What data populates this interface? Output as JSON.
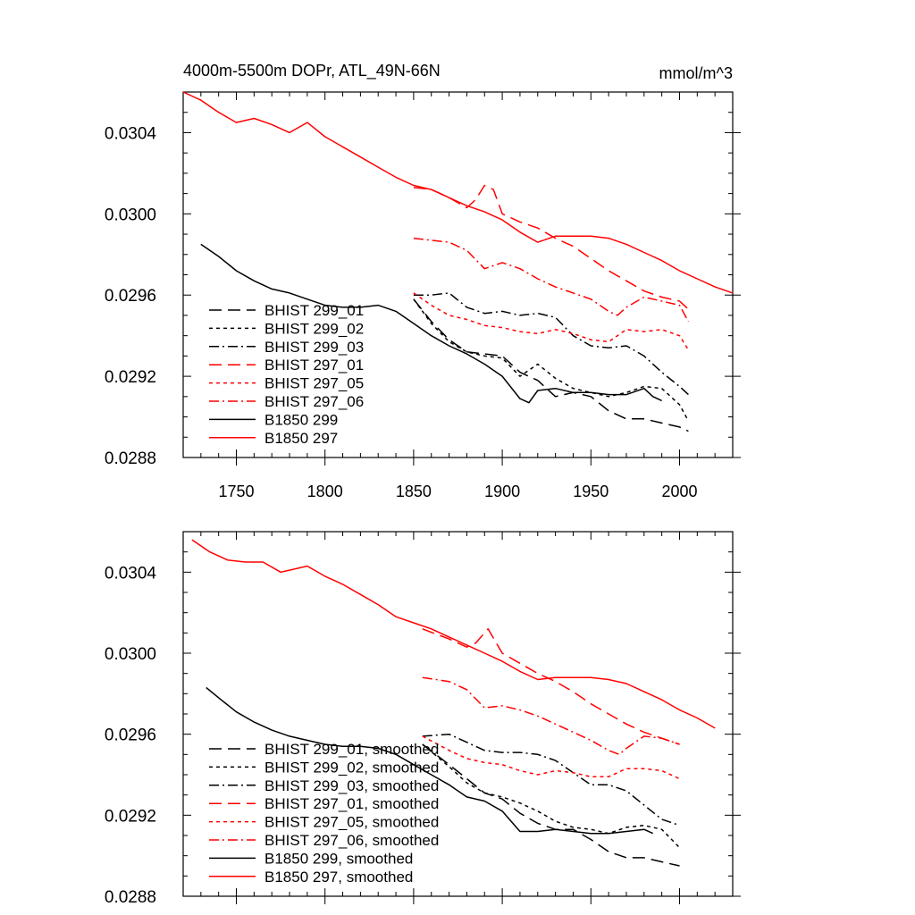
{
  "chart_data": [
    {
      "type": "line",
      "title": "4000m-5500m DOPr, ATL_49N-66N",
      "units": "mmol/m^3",
      "xlim": [
        1720,
        2030
      ],
      "ylim": [
        0.0288,
        0.0306
      ],
      "xticks": [
        1750,
        1800,
        1850,
        1900,
        1950,
        2000
      ],
      "xtick_labels": [
        "1750",
        "1800",
        "1850",
        "1900",
        "1950",
        "2000"
      ],
      "yticks": [
        0.0288,
        0.0292,
        0.0296,
        0.03,
        0.0304
      ],
      "ytick_labels": [
        "0.0288",
        "0.0292",
        "0.0296",
        "0.0300",
        "0.0304"
      ],
      "legend": "bottom-left",
      "series": [
        {
          "name": "BHIST 299_01",
          "color": "#000000",
          "dash": "dashed",
          "x": [
            1850,
            1860,
            1870,
            1880,
            1890,
            1900,
            1910,
            1920,
            1930,
            1940,
            1950,
            1960,
            1970,
            1980,
            1990,
            2000,
            2005
          ],
          "y": [
            0.02958,
            0.02947,
            0.02938,
            0.02932,
            0.02931,
            0.0293,
            0.02922,
            0.02918,
            0.0291,
            0.02912,
            0.0291,
            0.02903,
            0.02899,
            0.02899,
            0.02897,
            0.02895,
            0.02893
          ]
        },
        {
          "name": "BHIST 299_02",
          "color": "#000000",
          "dash": "dotted",
          "x": [
            1850,
            1860,
            1870,
            1880,
            1890,
            1900,
            1910,
            1920,
            1930,
            1940,
            1950,
            1960,
            1970,
            1980,
            1990,
            2000,
            2005
          ],
          "y": [
            0.02958,
            0.02946,
            0.02937,
            0.02932,
            0.0293,
            0.02929,
            0.0292,
            0.02926,
            0.02919,
            0.02914,
            0.02912,
            0.0291,
            0.02912,
            0.02915,
            0.02914,
            0.02906,
            0.02898
          ]
        },
        {
          "name": "BHIST 299_03",
          "color": "#000000",
          "dash": "dashdot",
          "x": [
            1850,
            1860,
            1870,
            1880,
            1890,
            1900,
            1910,
            1920,
            1930,
            1940,
            1950,
            1960,
            1970,
            1980,
            1990,
            2000,
            2005
          ],
          "y": [
            0.0296,
            0.0296,
            0.02961,
            0.02954,
            0.02951,
            0.02952,
            0.0295,
            0.02951,
            0.02949,
            0.0294,
            0.02935,
            0.02934,
            0.02935,
            0.0293,
            0.02922,
            0.02915,
            0.02911
          ]
        },
        {
          "name": "BHIST 297_01",
          "color": "#ff0000",
          "dash": "dashed",
          "x": [
            1850,
            1860,
            1870,
            1880,
            1885,
            1890,
            1895,
            1900,
            1910,
            1920,
            1930,
            1940,
            1950,
            1960,
            1970,
            1980,
            1990,
            2000,
            2005
          ],
          "y": [
            0.03013,
            0.03012,
            0.03008,
            0.03003,
            0.03007,
            0.03014,
            0.03012,
            0.03,
            0.02996,
            0.02993,
            0.02988,
            0.02984,
            0.02978,
            0.02972,
            0.02967,
            0.02962,
            0.02959,
            0.02957,
            0.02953
          ]
        },
        {
          "name": "BHIST 297_05",
          "color": "#ff0000",
          "dash": "dotted",
          "x": [
            1850,
            1860,
            1870,
            1880,
            1890,
            1900,
            1910,
            1920,
            1930,
            1940,
            1950,
            1960,
            1970,
            1980,
            1990,
            2000,
            2005
          ],
          "y": [
            0.02961,
            0.02955,
            0.0295,
            0.02948,
            0.02945,
            0.02944,
            0.02942,
            0.02941,
            0.02943,
            0.02941,
            0.02938,
            0.02937,
            0.02943,
            0.02942,
            0.02943,
            0.0294,
            0.02933
          ]
        },
        {
          "name": "BHIST 297_06",
          "color": "#ff0000",
          "dash": "dashdot",
          "x": [
            1850,
            1860,
            1870,
            1880,
            1890,
            1900,
            1910,
            1920,
            1930,
            1940,
            1950,
            1960,
            1965,
            1970,
            1980,
            1990,
            2000,
            2005
          ],
          "y": [
            0.02988,
            0.02987,
            0.02986,
            0.02982,
            0.02973,
            0.02976,
            0.02973,
            0.02968,
            0.02964,
            0.02961,
            0.02958,
            0.02952,
            0.0295,
            0.02954,
            0.02959,
            0.02957,
            0.02955,
            0.02947
          ]
        },
        {
          "name": "B1850 299",
          "color": "#000000",
          "dash": "solid",
          "x": [
            1730,
            1740,
            1750,
            1760,
            1770,
            1780,
            1790,
            1800,
            1810,
            1820,
            1830,
            1840,
            1850,
            1860,
            1870,
            1880,
            1890,
            1900,
            1910,
            1915,
            1920,
            1930,
            1940,
            1950,
            1960,
            1970,
            1980,
            1985,
            1990
          ],
          "y": [
            0.02985,
            0.02979,
            0.02972,
            0.02967,
            0.02963,
            0.02961,
            0.02958,
            0.02955,
            0.02954,
            0.02954,
            0.02955,
            0.02952,
            0.02946,
            0.0294,
            0.02935,
            0.02931,
            0.02926,
            0.0292,
            0.02909,
            0.02907,
            0.02913,
            0.02914,
            0.02912,
            0.02912,
            0.02911,
            0.02911,
            0.02914,
            0.0291,
            0.02908
          ]
        },
        {
          "name": "B1850 297",
          "color": "#ff0000",
          "dash": "solid",
          "x": [
            1720,
            1730,
            1740,
            1750,
            1760,
            1770,
            1780,
            1790,
            1800,
            1810,
            1820,
            1830,
            1840,
            1850,
            1860,
            1870,
            1880,
            1890,
            1900,
            1910,
            1920,
            1930,
            1940,
            1950,
            1960,
            1970,
            1980,
            1990,
            2000,
            2010,
            2020,
            2030
          ],
          "y": [
            0.0306,
            0.03056,
            0.0305,
            0.03045,
            0.03047,
            0.03044,
            0.0304,
            0.03045,
            0.03038,
            0.03033,
            0.03028,
            0.03023,
            0.03018,
            0.03014,
            0.03012,
            0.03008,
            0.03004,
            0.03001,
            0.02997,
            0.02991,
            0.02986,
            0.02989,
            0.02989,
            0.02989,
            0.02988,
            0.02985,
            0.02981,
            0.02977,
            0.02972,
            0.02968,
            0.02964,
            0.02961
          ]
        }
      ]
    },
    {
      "type": "line",
      "xlim": [
        1720,
        2030
      ],
      "ylim": [
        0.0288,
        0.0306
      ],
      "xticks": [
        1750,
        1800,
        1850,
        1900,
        1950,
        2000
      ],
      "yticks": [
        0.0288,
        0.0292,
        0.0296,
        0.03,
        0.0304
      ],
      "ytick_labels": [
        "0.0288",
        "0.0292",
        "0.0296",
        "0.0300",
        "0.0304"
      ],
      "legend": "bottom-left",
      "series": [
        {
          "name": "BHIST 299_01, smoothed",
          "color": "#000000",
          "dash": "dashed",
          "x": [
            1855,
            1870,
            1880,
            1890,
            1900,
            1910,
            1920,
            1930,
            1940,
            1950,
            1960,
            1970,
            1980,
            1990,
            2000
          ],
          "y": [
            0.02955,
            0.02945,
            0.02938,
            0.02931,
            0.02928,
            0.02921,
            0.02916,
            0.02913,
            0.02913,
            0.02908,
            0.02902,
            0.02899,
            0.02899,
            0.02897,
            0.02895
          ]
        },
        {
          "name": "BHIST 299_02, smoothed",
          "color": "#000000",
          "dash": "dotted",
          "x": [
            1855,
            1870,
            1880,
            1890,
            1900,
            1910,
            1920,
            1930,
            1940,
            1950,
            1960,
            1970,
            1980,
            1990,
            2000
          ],
          "y": [
            0.02955,
            0.02944,
            0.02936,
            0.02931,
            0.02929,
            0.02926,
            0.02922,
            0.02917,
            0.02914,
            0.02913,
            0.02911,
            0.02914,
            0.02915,
            0.02913,
            0.02904
          ]
        },
        {
          "name": "BHIST 299_03, smoothed",
          "color": "#000000",
          "dash": "dashdot",
          "x": [
            1855,
            1870,
            1880,
            1890,
            1900,
            1910,
            1920,
            1930,
            1940,
            1950,
            1960,
            1970,
            1980,
            1990,
            2000
          ],
          "y": [
            0.02959,
            0.0296,
            0.02956,
            0.02952,
            0.02951,
            0.02951,
            0.0295,
            0.02947,
            0.02941,
            0.02935,
            0.02935,
            0.02932,
            0.02925,
            0.02918,
            0.02915
          ]
        },
        {
          "name": "BHIST 297_01, smoothed",
          "color": "#ff0000",
          "dash": "dashed",
          "x": [
            1855,
            1870,
            1880,
            1885,
            1892,
            1900,
            1910,
            1920,
            1930,
            1940,
            1950,
            1960,
            1970,
            1980,
            1990,
            2000
          ],
          "y": [
            0.03012,
            0.03007,
            0.03003,
            0.03005,
            0.03012,
            0.03,
            0.02995,
            0.0299,
            0.02986,
            0.02981,
            0.02975,
            0.0297,
            0.02965,
            0.02961,
            0.02958,
            0.02955
          ]
        },
        {
          "name": "BHIST 297_05, smoothed",
          "color": "#ff0000",
          "dash": "dotted",
          "x": [
            1855,
            1870,
            1880,
            1890,
            1900,
            1910,
            1920,
            1930,
            1940,
            1950,
            1960,
            1970,
            1980,
            1990,
            2000
          ],
          "y": [
            0.02959,
            0.02952,
            0.02948,
            0.02946,
            0.02945,
            0.02942,
            0.0294,
            0.02942,
            0.02941,
            0.02939,
            0.02939,
            0.02943,
            0.02943,
            0.02942,
            0.02938
          ]
        },
        {
          "name": "BHIST 297_06, smoothed",
          "color": "#ff0000",
          "dash": "dashdot",
          "x": [
            1855,
            1870,
            1880,
            1890,
            1900,
            1910,
            1920,
            1930,
            1940,
            1950,
            1960,
            1966,
            1970,
            1980,
            1990,
            2000
          ],
          "y": [
            0.02988,
            0.02986,
            0.02982,
            0.02973,
            0.02974,
            0.02972,
            0.02969,
            0.02965,
            0.02961,
            0.02957,
            0.02952,
            0.0295,
            0.02953,
            0.02959,
            0.02958,
            0.02955
          ]
        },
        {
          "name": "B1850 299, smoothed",
          "color": "#000000",
          "dash": "solid",
          "x": [
            1733,
            1740,
            1750,
            1760,
            1770,
            1780,
            1790,
            1800,
            1810,
            1820,
            1830,
            1840,
            1850,
            1860,
            1870,
            1880,
            1890,
            1900,
            1910,
            1920,
            1930,
            1940,
            1950,
            1960,
            1970,
            1980,
            1985
          ],
          "y": [
            0.02983,
            0.02978,
            0.02971,
            0.02966,
            0.02962,
            0.02959,
            0.02957,
            0.02955,
            0.02954,
            0.02954,
            0.02953,
            0.0295,
            0.02945,
            0.0294,
            0.02935,
            0.02929,
            0.02927,
            0.02922,
            0.02912,
            0.02912,
            0.02913,
            0.02912,
            0.02911,
            0.02911,
            0.02912,
            0.02913,
            0.02911
          ]
        },
        {
          "name": "B1850 297, smoothed",
          "color": "#ff0000",
          "dash": "solid",
          "x": [
            1725,
            1735,
            1745,
            1755,
            1765,
            1775,
            1780,
            1790,
            1800,
            1810,
            1820,
            1830,
            1840,
            1850,
            1860,
            1870,
            1880,
            1890,
            1900,
            1910,
            1920,
            1930,
            1940,
            1950,
            1960,
            1970,
            1980,
            1990,
            2000,
            2010,
            2020
          ],
          "y": [
            0.03056,
            0.0305,
            0.03046,
            0.03045,
            0.03045,
            0.0304,
            0.03041,
            0.03043,
            0.03038,
            0.03034,
            0.03029,
            0.03024,
            0.03018,
            0.03015,
            0.03012,
            0.03008,
            0.03004,
            0.03,
            0.02996,
            0.02991,
            0.02987,
            0.02988,
            0.02988,
            0.02988,
            0.02987,
            0.02985,
            0.02981,
            0.02977,
            0.02972,
            0.02968,
            0.02963
          ]
        }
      ]
    }
  ]
}
